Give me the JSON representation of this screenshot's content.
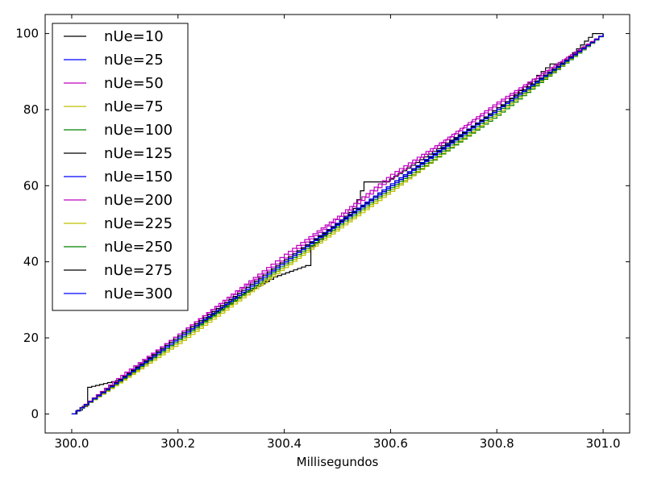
{
  "chart_data": {
    "type": "line",
    "title": "",
    "xlabel": "Millisegundos",
    "ylabel": "",
    "xlim": [
      299.95,
      301.05
    ],
    "ylim": [
      -5,
      105
    ],
    "xticks": [
      300.0,
      300.2,
      300.4,
      300.6,
      300.8,
      301.0
    ],
    "xtick_labels": [
      "300.0",
      "300.2",
      "300.4",
      "300.6",
      "300.8",
      "301.0"
    ],
    "yticks": [
      0,
      20,
      40,
      60,
      80,
      100
    ],
    "ytick_labels": [
      "0",
      "20",
      "40",
      "60",
      "80",
      "100"
    ],
    "grid": false,
    "legend_position": "top-left",
    "series": [
      {
        "name": "nUe=10",
        "color": "#000000",
        "x": [
          300.0,
          300.02,
          300.03,
          300.09,
          300.2,
          300.3,
          300.38,
          300.44,
          300.45,
          300.53,
          300.55,
          300.59,
          300.8,
          300.9,
          300.92,
          300.98,
          301.0
        ],
        "y": [
          0,
          2,
          7,
          9,
          20,
          30,
          36,
          39,
          44,
          54,
          61,
          61,
          80,
          92,
          92,
          100,
          100
        ]
      },
      {
        "name": "nUe=25",
        "color": "#0000ff",
        "x": [
          300.0,
          300.2,
          300.4,
          300.6,
          300.8,
          301.0
        ],
        "y": [
          0,
          20,
          40,
          60,
          80,
          100
        ]
      },
      {
        "name": "nUe=50",
        "color": "#bf00bf",
        "x": [
          300.0,
          300.1,
          300.2,
          300.3,
          300.4,
          300.5,
          300.6,
          300.7,
          300.8,
          300.9,
          301.0
        ],
        "y": [
          0,
          11,
          21,
          31.5,
          42,
          52,
          63,
          72,
          82,
          91,
          100
        ]
      },
      {
        "name": "nUe=75",
        "color": "#bfbf00",
        "x": [
          300.0,
          300.2,
          300.4,
          300.6,
          300.8,
          301.0
        ],
        "y": [
          0,
          18.5,
          38.5,
          58.5,
          79,
          100
        ]
      },
      {
        "name": "nUe=100",
        "color": "#008000",
        "x": [
          300.0,
          300.2,
          300.4,
          300.6,
          300.8,
          301.0
        ],
        "y": [
          0,
          19.5,
          39,
          59,
          78.5,
          100
        ]
      },
      {
        "name": "nUe=125",
        "color": "#000000",
        "x": [
          300.0,
          300.2,
          300.4,
          300.6,
          300.8,
          301.0
        ],
        "y": [
          0,
          20,
          40,
          60.5,
          80,
          100
        ]
      },
      {
        "name": "nUe=150",
        "color": "#0000ff",
        "x": [
          300.0,
          300.2,
          300.4,
          300.6,
          300.8,
          301.0
        ],
        "y": [
          0,
          20.5,
          40.5,
          60.5,
          80.5,
          100
        ]
      },
      {
        "name": "nUe=200",
        "color": "#bf00bf",
        "x": [
          300.0,
          300.2,
          300.4,
          300.6,
          300.8,
          301.0
        ],
        "y": [
          0,
          21,
          41,
          62,
          81.5,
          100
        ]
      },
      {
        "name": "nUe=225",
        "color": "#bfbf00",
        "x": [
          300.0,
          300.2,
          300.4,
          300.6,
          300.8,
          301.0
        ],
        "y": [
          0,
          19,
          39,
          59,
          79,
          100
        ]
      },
      {
        "name": "nUe=250",
        "color": "#008000",
        "x": [
          300.0,
          300.2,
          300.4,
          300.6,
          300.8,
          301.0
        ],
        "y": [
          0,
          19.5,
          39.5,
          59.5,
          79.5,
          100
        ]
      },
      {
        "name": "nUe=275",
        "color": "#000000",
        "x": [
          300.0,
          300.2,
          300.4,
          300.6,
          300.8,
          301.0
        ],
        "y": [
          0,
          20.5,
          40.5,
          60,
          80.5,
          100
        ]
      },
      {
        "name": "nUe=300",
        "color": "#0000ff",
        "x": [
          300.0,
          300.2,
          300.4,
          300.6,
          300.8,
          301.0
        ],
        "y": [
          0,
          20,
          40,
          60,
          80,
          100
        ]
      }
    ]
  }
}
